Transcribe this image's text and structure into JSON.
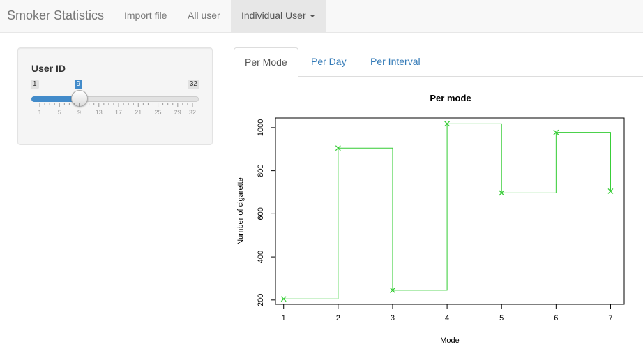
{
  "navbar": {
    "brand": "Smoker Statistics",
    "items": [
      {
        "label": "Import file"
      },
      {
        "label": "All user"
      },
      {
        "label": "Individual User"
      }
    ]
  },
  "sidebar": {
    "label": "User ID",
    "slider": {
      "min": 1,
      "max": 32,
      "value": 9,
      "min_label": "1",
      "max_label": "32",
      "value_label": "9",
      "tick_labels": [
        "1",
        "5",
        "9",
        "13",
        "17",
        "21",
        "25",
        "29",
        "32"
      ]
    }
  },
  "tabs": [
    {
      "label": "Per Mode",
      "active": true
    },
    {
      "label": "Per Day",
      "active": false
    },
    {
      "label": "Per Interval",
      "active": false
    }
  ],
  "colors": {
    "accent": "#428bca",
    "line": "#33cc33"
  },
  "chart_data": {
    "type": "line",
    "title": "Per mode",
    "xlabel": "Mode",
    "ylabel": "Number of cigarette",
    "x": [
      1,
      2,
      3,
      4,
      5,
      6,
      7
    ],
    "values": [
      205,
      905,
      245,
      1018,
      697,
      978,
      705
    ],
    "xticks": [
      "1",
      "2",
      "3",
      "4",
      "5",
      "6",
      "7"
    ],
    "yticks": [
      "200",
      "400",
      "600",
      "800",
      "1000"
    ],
    "ytick_values": [
      200,
      400,
      600,
      800,
      1000
    ],
    "xlim": [
      0.85,
      7.25
    ],
    "ylim": [
      180,
      1045
    ],
    "step": "post",
    "marker": "x",
    "grid": false
  }
}
